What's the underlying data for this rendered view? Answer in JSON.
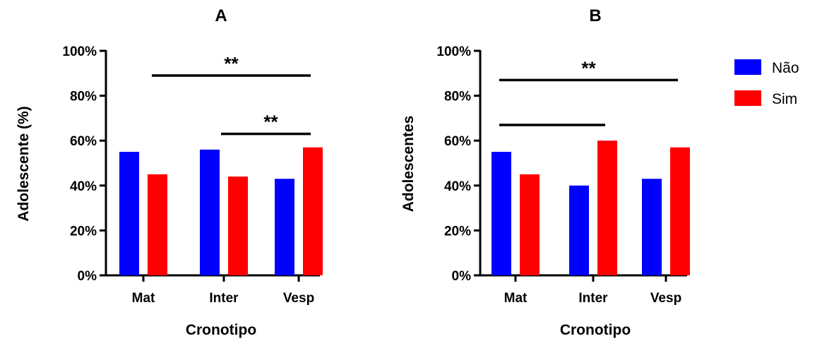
{
  "chart_data": [
    {
      "type": "bar",
      "panel": "A",
      "title": "A",
      "xlabel": "Cronotipo",
      "ylabel": "Adolescente (%)",
      "categories": [
        "Mat",
        "Inter",
        "Vesp"
      ],
      "ylim": [
        0,
        100
      ],
      "yticks": [
        "0%",
        "20%",
        "40%",
        "60%",
        "80%",
        "100%"
      ],
      "series": [
        {
          "name": "Não",
          "color": "#0000ff",
          "values": [
            55,
            56,
            43
          ]
        },
        {
          "name": "Sim",
          "color": "#ff0000",
          "values": [
            45,
            44,
            57
          ]
        }
      ],
      "significance": [
        {
          "from": "Mat",
          "to": "Vesp",
          "level": 89,
          "label": "**"
        },
        {
          "from": "Inter",
          "to": "Vesp",
          "level": 63,
          "label": "**"
        }
      ]
    },
    {
      "type": "bar",
      "panel": "B",
      "title": "B",
      "xlabel": "Cronotipo",
      "ylabel": "Adolescentes",
      "categories": [
        "Mat",
        "Inter",
        "Vesp"
      ],
      "ylim": [
        0,
        100
      ],
      "yticks": [
        "0%",
        "20%",
        "40%",
        "60%",
        "80%",
        "100%"
      ],
      "series": [
        {
          "name": "Não",
          "color": "#0000ff",
          "values": [
            55,
            40,
            43
          ]
        },
        {
          "name": "Sim",
          "color": "#ff0000",
          "values": [
            45,
            60,
            57
          ]
        }
      ],
      "significance": [
        {
          "from": "Mat",
          "to": "Vesp",
          "level": 87,
          "label": "**"
        },
        {
          "from": "Mat",
          "to": "Inter",
          "level": 67,
          "label": ""
        }
      ]
    }
  ],
  "legend": {
    "placement": "right",
    "items": [
      {
        "label": "Não",
        "color": "#0000ff"
      },
      {
        "label": "Sim",
        "color": "#ff0000"
      }
    ]
  }
}
